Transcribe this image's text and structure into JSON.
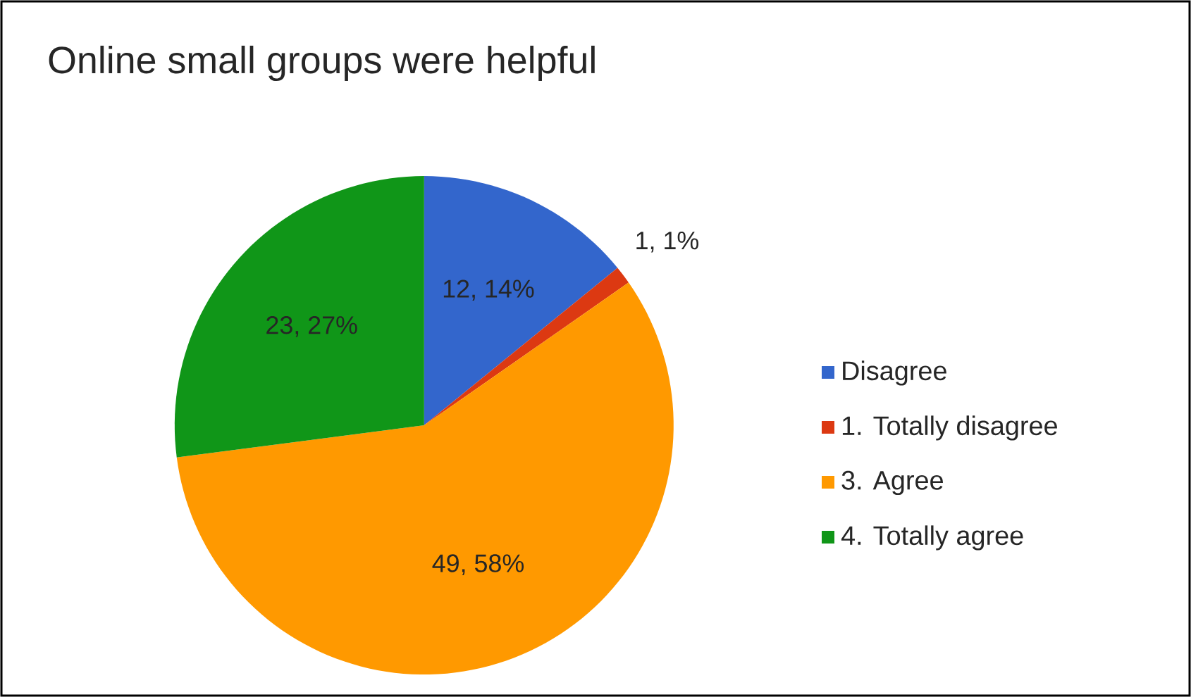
{
  "chart_data": {
    "type": "pie",
    "title": "Online small groups were helpful",
    "categories": [
      "Disagree",
      "1. Totally disagree",
      "3. Agree",
      "4. Totally agree"
    ],
    "values": [
      12,
      1,
      49,
      23
    ],
    "colors": [
      "#3366cc",
      "#dc3912",
      "#ff9900",
      "#109618"
    ],
    "value_labels": [
      "12, 14%",
      "1, 1%",
      "49, 58%",
      "23, 27%"
    ],
    "legend": "right"
  }
}
